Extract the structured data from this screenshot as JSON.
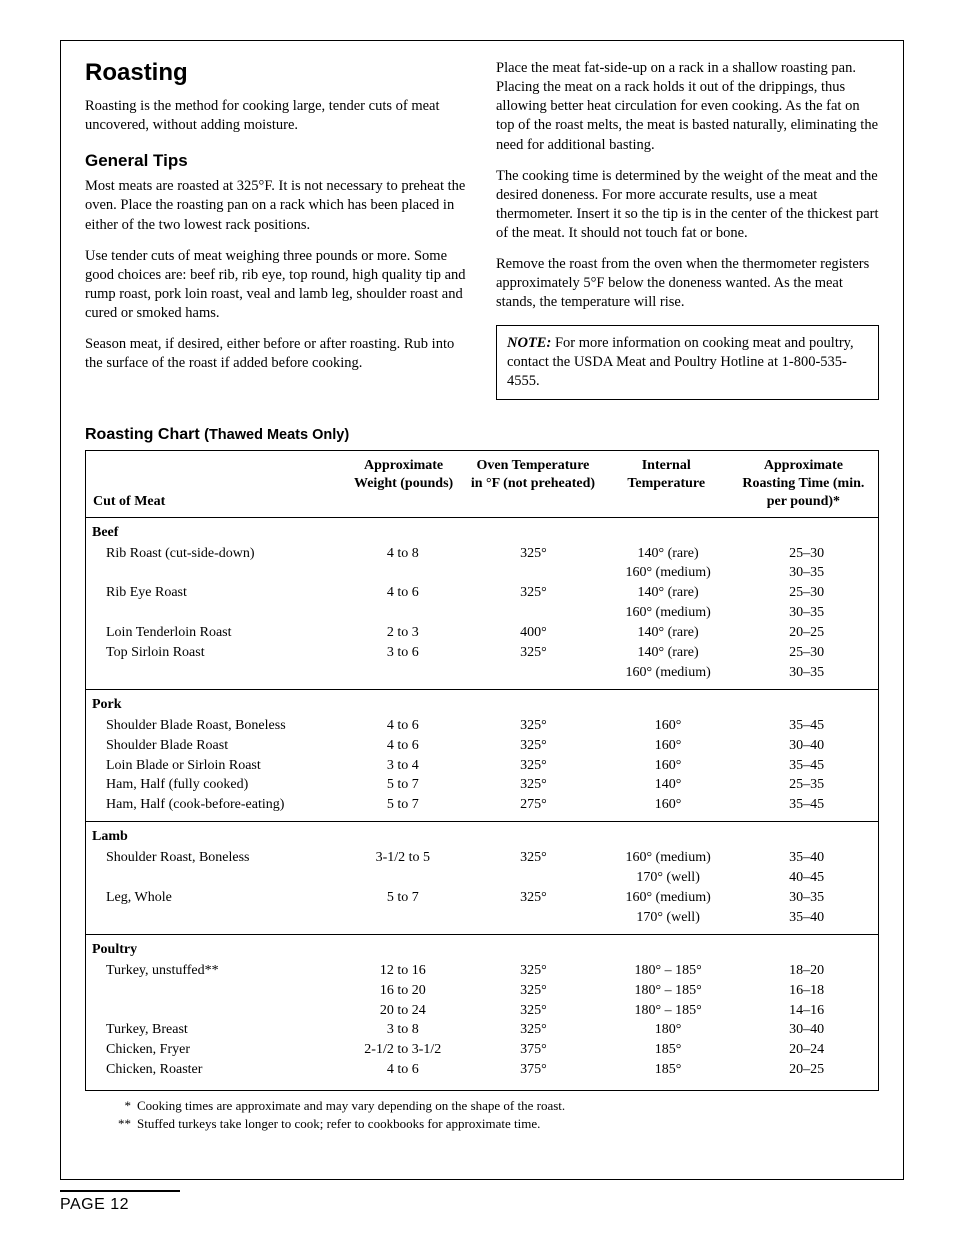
{
  "title": "Roasting",
  "intro": "Roasting is the method for cooking large, tender cuts of meat uncovered, without adding moisture.",
  "tips_h": "General Tips",
  "tips": [
    "Most meats are roasted at 325°F. It is not necessary to preheat the oven. Place the roasting pan on a rack which has been placed in either of the two lowest rack positions.",
    "Use tender cuts of meat weighing three pounds or more. Some good choices are: beef rib, rib eye, top round, high quality tip and rump roast, pork loin roast, veal and lamb leg, shoulder roast and cured or smoked hams.",
    "Season meat, if desired, either before or after roasting. Rub into the surface of the roast if added before cooking."
  ],
  "right": [
    "Place the meat fat-side-up on a rack in a shallow roasting pan. Placing the meat on a rack holds it out of the drippings, thus allowing better heat circulation for even cooking. As the fat on top of the roast melts, the meat is basted naturally, eliminating the need for additional basting.",
    "The cooking time is determined by the weight of the meat and the desired doneness. For more accurate results, use a meat thermometer. Insert it so the tip is in the center of the thickest part of the meat. It should not touch fat or bone.",
    "Remove the roast from the oven when the thermometer registers approximately 5°F below the doneness wanted. As the meat stands, the temperature will rise."
  ],
  "note_label": "NOTE:",
  "note_body": "For more information on cooking meat and poultry, contact the USDA Meat and Poultry Hotline at 1-800-535-4555.",
  "chart_title": "Roasting Chart",
  "chart_sub": "(Thawed Meats Only)",
  "headers": {
    "cut": "Cut of Meat",
    "wt": "Approximate Weight (pounds)",
    "oven": "Oven Temperature in °F (not preheated)",
    "intl": "Internal Temperature",
    "time": "Approximate Roasting Time (min. per pound)*"
  },
  "sections": [
    {
      "label": "Beef",
      "rows": [
        {
          "cut": "Rib Roast (cut-side-down)",
          "wt": "4 to 8",
          "oven": "325°",
          "lines": [
            {
              "intl": "140° (rare)",
              "time": "25–30"
            },
            {
              "intl": "160° (medium)",
              "time": "30–35"
            }
          ]
        },
        {
          "cut": "Rib Eye Roast",
          "wt": "4 to 6",
          "oven": "325°",
          "lines": [
            {
              "intl": "140° (rare)",
              "time": "25–30"
            },
            {
              "intl": "160° (medium)",
              "time": "30–35"
            }
          ]
        },
        {
          "cut": "Loin Tenderloin Roast",
          "wt": "2 to 3",
          "oven": "400°",
          "lines": [
            {
              "intl": "140° (rare)",
              "time": "20–25"
            }
          ]
        },
        {
          "cut": "Top Sirloin Roast",
          "wt": "3 to 6",
          "oven": "325°",
          "lines": [
            {
              "intl": "140° (rare)",
              "time": "25–30"
            },
            {
              "intl": "160° (medium)",
              "time": "30–35"
            }
          ]
        }
      ]
    },
    {
      "label": "Pork",
      "rows": [
        {
          "cut": "Shoulder Blade Roast, Boneless",
          "wt": "4 to 6",
          "oven": "325°",
          "lines": [
            {
              "intl": "160°",
              "time": "35–45"
            }
          ]
        },
        {
          "cut": "Shoulder Blade Roast",
          "wt": "4 to 6",
          "oven": "325°",
          "lines": [
            {
              "intl": "160°",
              "time": "30–40"
            }
          ]
        },
        {
          "cut": "Loin Blade or Sirloin Roast",
          "wt": "3 to 4",
          "oven": "325°",
          "lines": [
            {
              "intl": "160°",
              "time": "35–45"
            }
          ]
        },
        {
          "cut": "Ham, Half (fully cooked)",
          "wt": "5 to 7",
          "oven": "325°",
          "lines": [
            {
              "intl": "140°",
              "time": "25–35"
            }
          ]
        },
        {
          "cut": "Ham, Half (cook-before-eating)",
          "wt": "5 to 7",
          "oven": "275°",
          "lines": [
            {
              "intl": "160°",
              "time": "35–45"
            }
          ]
        }
      ]
    },
    {
      "label": "Lamb",
      "rows": [
        {
          "cut": "Shoulder Roast, Boneless",
          "wt": "3-1/2 to 5",
          "oven": "325°",
          "lines": [
            {
              "intl": "160° (medium)",
              "time": "35–40"
            },
            {
              "intl": "170° (well)",
              "time": "40–45"
            }
          ]
        },
        {
          "cut": "Leg, Whole",
          "wt": "5 to 7",
          "oven": "325°",
          "lines": [
            {
              "intl": "160° (medium)",
              "time": "30–35"
            },
            {
              "intl": "170° (well)",
              "time": "35–40"
            }
          ]
        }
      ]
    },
    {
      "label": "Poultry",
      "rows": [
        {
          "cut": "Turkey, unstuffed**",
          "wt": "12 to 16",
          "oven": "325°",
          "lines": [
            {
              "intl": "180° – 185°",
              "time": "18–20"
            }
          ]
        },
        {
          "cut": "",
          "wt": "16 to 20",
          "oven": "325°",
          "lines": [
            {
              "intl": "180° – 185°",
              "time": "16–18"
            }
          ]
        },
        {
          "cut": "",
          "wt": "20 to 24",
          "oven": "325°",
          "lines": [
            {
              "intl": "180° – 185°",
              "time": "14–16"
            }
          ]
        },
        {
          "cut": "Turkey, Breast",
          "wt": "3 to 8",
          "oven": "325°",
          "lines": [
            {
              "intl": "180°",
              "time": "30–40"
            }
          ]
        },
        {
          "cut": "Chicken, Fryer",
          "wt": "2-1/2 to 3-1/2",
          "oven": "375°",
          "lines": [
            {
              "intl": "185°",
              "time": "20–24"
            }
          ]
        },
        {
          "cut": "Chicken, Roaster",
          "wt": "4 to 6",
          "oven": "375°",
          "lines": [
            {
              "intl": "185°",
              "time": "20–25"
            }
          ]
        }
      ]
    }
  ],
  "footnotes": [
    {
      "mk": "*",
      "txt": "Cooking times are approximate and may vary depending on the shape of the roast."
    },
    {
      "mk": "**",
      "txt": "Stuffed turkeys take longer to cook; refer to cookbooks for approximate time."
    }
  ],
  "page": "PAGE 12"
}
